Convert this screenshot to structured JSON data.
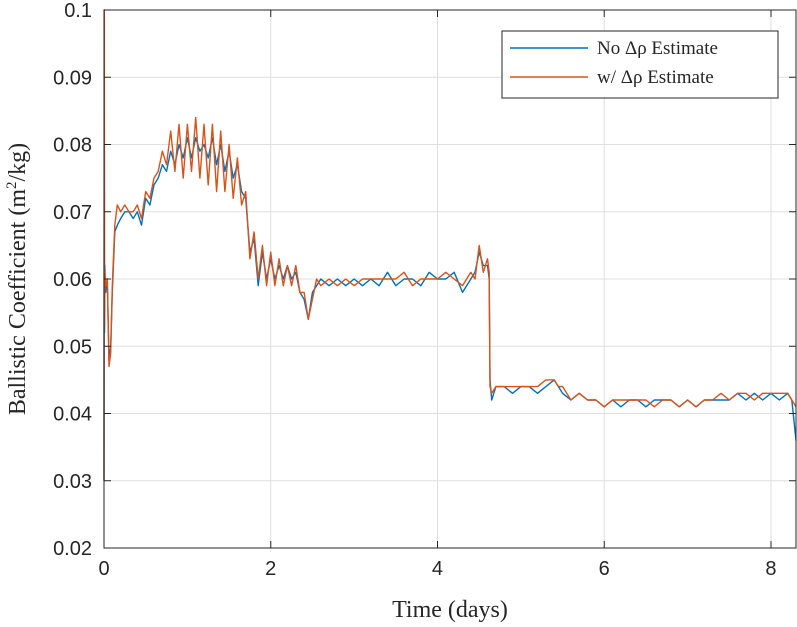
{
  "chart_data": {
    "type": "line",
    "xlabel": "Time (days)",
    "ylabel_prefix": "Ballistic Coefficient (m",
    "ylabel_sup": "2",
    "ylabel_suffix": "/kg)",
    "xlim": [
      0,
      8.3
    ],
    "ylim": [
      0.02,
      0.1
    ],
    "xticks": [
      0,
      2,
      4,
      6,
      8
    ],
    "xtick_labels": [
      "0",
      "2",
      "4",
      "6",
      "8"
    ],
    "yticks": [
      0.02,
      0.03,
      0.04,
      0.05,
      0.06,
      0.07,
      0.08,
      0.09,
      0.1
    ],
    "ytick_labels": [
      "0.02",
      "0.03",
      "0.04",
      "0.05",
      "0.06",
      "0.07",
      "0.08",
      "0.09",
      "0.1"
    ],
    "grid": true,
    "legend_position": "top-right",
    "series": [
      {
        "name": "No Δρ Estimate",
        "color": "#0072BD",
        "x": [
          0,
          0.003,
          0.006,
          0.01,
          0.02,
          0.04,
          0.06,
          0.08,
          0.1,
          0.13,
          0.16,
          0.2,
          0.25,
          0.3,
          0.35,
          0.4,
          0.45,
          0.5,
          0.55,
          0.6,
          0.65,
          0.7,
          0.75,
          0.8,
          0.85,
          0.9,
          0.95,
          1.0,
          1.05,
          1.1,
          1.15,
          1.2,
          1.25,
          1.3,
          1.35,
          1.4,
          1.45,
          1.5,
          1.55,
          1.6,
          1.65,
          1.7,
          1.75,
          1.8,
          1.85,
          1.9,
          1.95,
          2.0,
          2.05,
          2.1,
          2.15,
          2.2,
          2.25,
          2.3,
          2.35,
          2.4,
          2.45,
          2.5,
          2.55,
          2.6,
          2.7,
          2.8,
          2.9,
          3.0,
          3.1,
          3.2,
          3.3,
          3.4,
          3.5,
          3.6,
          3.7,
          3.8,
          3.9,
          4.0,
          4.1,
          4.2,
          4.3,
          4.4,
          4.45,
          4.5,
          4.55,
          4.6,
          4.62,
          4.63,
          4.65,
          4.7,
          4.8,
          4.9,
          5.0,
          5.1,
          5.2,
          5.3,
          5.4,
          5.45,
          5.5,
          5.6,
          5.7,
          5.8,
          5.9,
          6.0,
          6.1,
          6.2,
          6.3,
          6.4,
          6.5,
          6.6,
          6.7,
          6.8,
          6.9,
          7.0,
          7.1,
          7.2,
          7.3,
          7.4,
          7.5,
          7.6,
          7.7,
          7.8,
          7.9,
          8.0,
          8.1,
          8.2,
          8.25,
          8.3
        ],
        "y": [
          0.03,
          0.1,
          0.052,
          0.062,
          0.058,
          0.06,
          0.048,
          0.05,
          0.058,
          0.067,
          0.068,
          0.069,
          0.07,
          0.07,
          0.069,
          0.07,
          0.068,
          0.072,
          0.071,
          0.074,
          0.075,
          0.077,
          0.076,
          0.079,
          0.077,
          0.08,
          0.078,
          0.081,
          0.078,
          0.081,
          0.079,
          0.08,
          0.078,
          0.081,
          0.077,
          0.08,
          0.076,
          0.079,
          0.075,
          0.077,
          0.073,
          0.072,
          0.064,
          0.066,
          0.059,
          0.064,
          0.06,
          0.063,
          0.06,
          0.062,
          0.06,
          0.062,
          0.06,
          0.061,
          0.058,
          0.057,
          0.054,
          0.058,
          0.059,
          0.06,
          0.059,
          0.06,
          0.059,
          0.06,
          0.059,
          0.06,
          0.059,
          0.061,
          0.059,
          0.06,
          0.06,
          0.059,
          0.061,
          0.06,
          0.06,
          0.061,
          0.058,
          0.06,
          0.061,
          0.064,
          0.062,
          0.062,
          0.06,
          0.045,
          0.042,
          0.044,
          0.044,
          0.043,
          0.044,
          0.044,
          0.043,
          0.044,
          0.045,
          0.044,
          0.043,
          0.042,
          0.043,
          0.042,
          0.042,
          0.041,
          0.042,
          0.041,
          0.042,
          0.042,
          0.041,
          0.042,
          0.042,
          0.042,
          0.041,
          0.042,
          0.041,
          0.042,
          0.042,
          0.042,
          0.042,
          0.043,
          0.042,
          0.043,
          0.042,
          0.043,
          0.042,
          0.043,
          0.042,
          0.036
        ]
      },
      {
        "name": "w/ Δρ Estimate",
        "color": "#D95319",
        "x": [
          0,
          0.003,
          0.006,
          0.01,
          0.02,
          0.04,
          0.06,
          0.08,
          0.1,
          0.13,
          0.16,
          0.2,
          0.25,
          0.3,
          0.35,
          0.4,
          0.45,
          0.5,
          0.55,
          0.6,
          0.65,
          0.7,
          0.75,
          0.8,
          0.85,
          0.9,
          0.95,
          1.0,
          1.05,
          1.1,
          1.15,
          1.2,
          1.25,
          1.3,
          1.35,
          1.4,
          1.45,
          1.5,
          1.55,
          1.6,
          1.65,
          1.7,
          1.75,
          1.8,
          1.85,
          1.9,
          1.95,
          2.0,
          2.05,
          2.1,
          2.15,
          2.2,
          2.25,
          2.3,
          2.35,
          2.4,
          2.45,
          2.5,
          2.55,
          2.6,
          2.7,
          2.8,
          2.9,
          3.0,
          3.1,
          3.2,
          3.3,
          3.4,
          3.5,
          3.6,
          3.7,
          3.8,
          3.9,
          4.0,
          4.1,
          4.2,
          4.3,
          4.4,
          4.45,
          4.5,
          4.55,
          4.6,
          4.62,
          4.63,
          4.65,
          4.7,
          4.8,
          4.9,
          5.0,
          5.1,
          5.2,
          5.3,
          5.4,
          5.45,
          5.5,
          5.6,
          5.7,
          5.8,
          5.9,
          6.0,
          6.1,
          6.2,
          6.3,
          6.4,
          6.5,
          6.6,
          6.7,
          6.8,
          6.9,
          7.0,
          7.1,
          7.2,
          7.3,
          7.4,
          7.5,
          7.6,
          7.7,
          7.8,
          7.9,
          8.0,
          8.1,
          8.2,
          8.25,
          8.3
        ],
        "y": [
          0.03,
          0.1,
          0.053,
          0.061,
          0.059,
          0.06,
          0.047,
          0.049,
          0.059,
          0.068,
          0.071,
          0.07,
          0.071,
          0.07,
          0.07,
          0.071,
          0.069,
          0.073,
          0.072,
          0.075,
          0.076,
          0.079,
          0.077,
          0.082,
          0.076,
          0.083,
          0.075,
          0.083,
          0.076,
          0.084,
          0.075,
          0.083,
          0.074,
          0.083,
          0.073,
          0.082,
          0.073,
          0.08,
          0.072,
          0.078,
          0.071,
          0.073,
          0.063,
          0.067,
          0.06,
          0.065,
          0.059,
          0.064,
          0.059,
          0.063,
          0.059,
          0.062,
          0.059,
          0.062,
          0.058,
          0.058,
          0.054,
          0.057,
          0.06,
          0.059,
          0.06,
          0.059,
          0.06,
          0.059,
          0.06,
          0.06,
          0.06,
          0.06,
          0.06,
          0.061,
          0.059,
          0.06,
          0.06,
          0.06,
          0.061,
          0.06,
          0.059,
          0.061,
          0.06,
          0.065,
          0.061,
          0.063,
          0.061,
          0.044,
          0.043,
          0.044,
          0.044,
          0.044,
          0.044,
          0.044,
          0.044,
          0.045,
          0.045,
          0.044,
          0.044,
          0.042,
          0.043,
          0.042,
          0.042,
          0.041,
          0.042,
          0.042,
          0.042,
          0.042,
          0.042,
          0.041,
          0.042,
          0.042,
          0.041,
          0.042,
          0.041,
          0.042,
          0.042,
          0.043,
          0.042,
          0.043,
          0.043,
          0.042,
          0.043,
          0.043,
          0.043,
          0.043,
          0.042,
          0.041
        ]
      }
    ]
  }
}
